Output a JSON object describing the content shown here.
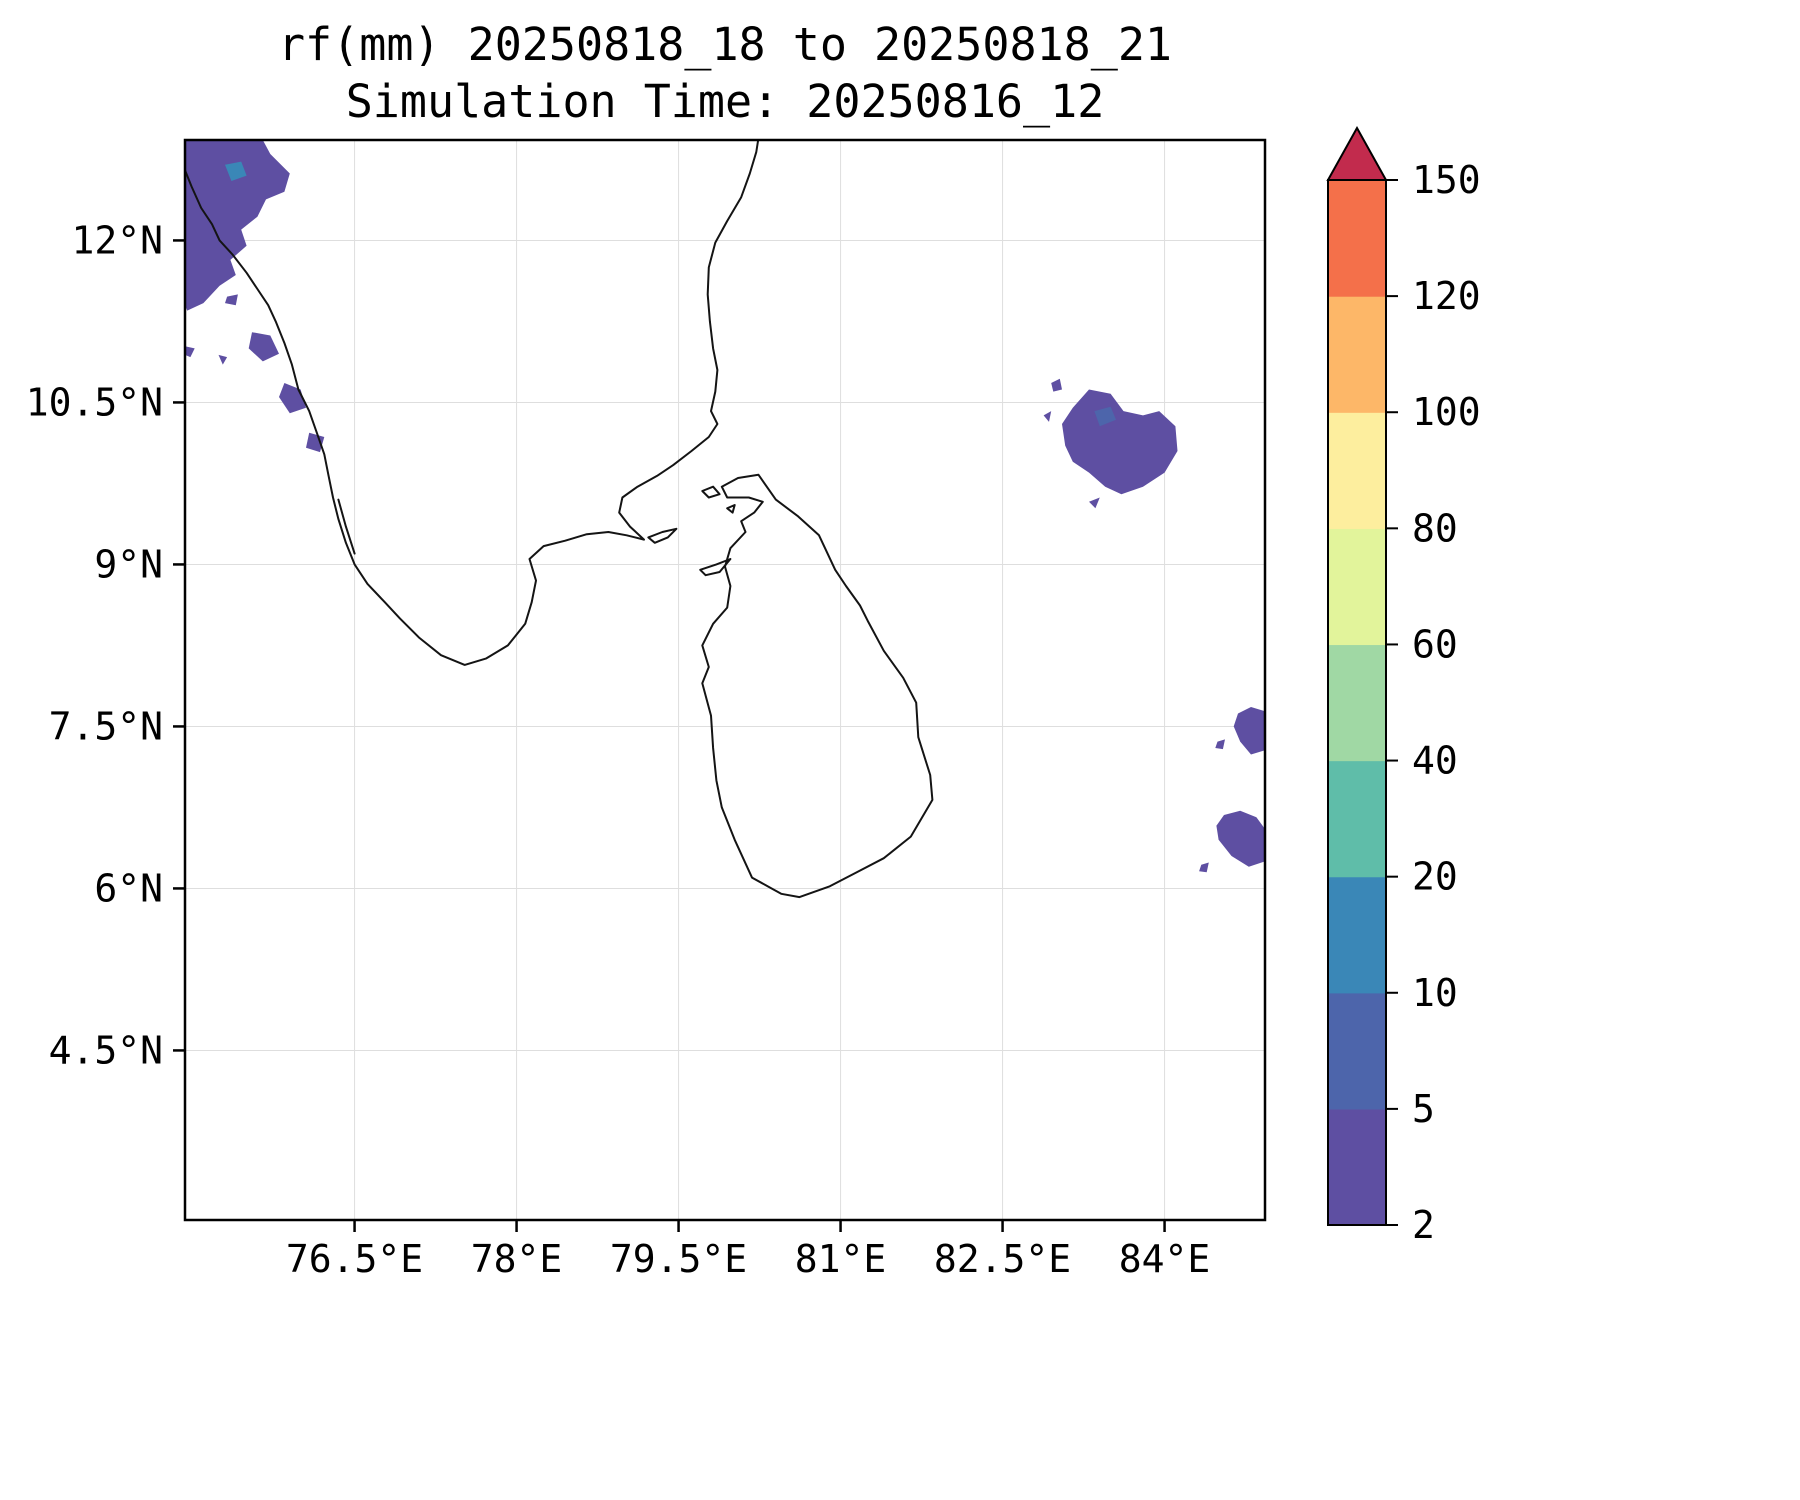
{
  "header": {
    "title": "rf(mm) 20250818_18 to 20250818_21",
    "subtitle": "Simulation Time: 20250816_12"
  },
  "chart_data": {
    "type": "heatmap",
    "subtype": "filled-contour-rainfall-map",
    "title": "rf(mm) 20250818_18 to 20250818_21",
    "subtitle": "Simulation Time: 20250816_12",
    "variable": "rf",
    "units": "mm",
    "valid_period": {
      "start": "20250818_18",
      "end": "20250818_21"
    },
    "simulation_time": "20250816_12",
    "grid": true,
    "grid_color": "#dedede",
    "coastline_color": "#141414",
    "extent": {
      "lon": [
        74.93,
        84.93
      ],
      "lat": [
        2.93,
        12.93
      ]
    },
    "x_axis": {
      "tick_values": [
        76.5,
        78,
        79.5,
        81,
        82.5,
        84
      ],
      "tick_labels": [
        "76.5°E",
        "78°E",
        "79.5°E",
        "81°E",
        "82.5°E",
        "84°E"
      ]
    },
    "y_axis": {
      "tick_values": [
        12,
        10.5,
        9,
        7.5,
        6,
        4.5
      ],
      "tick_labels": [
        "12°N",
        "10.5°N",
        "9°N",
        "7.5°N",
        "6°N",
        "4.5°N"
      ]
    },
    "colorbar": {
      "position": "right",
      "extend": "max",
      "levels": [
        2,
        5,
        10,
        20,
        40,
        60,
        80,
        100,
        120,
        150
      ],
      "tick_labels": [
        "2",
        "5",
        "10",
        "20",
        "40",
        "60",
        "80",
        "100",
        "120",
        "150"
      ],
      "interval_colors": [
        "#5e4fa2",
        "#4d65ab",
        "#3a87b7",
        "#5fbda9",
        "#a0d8a4",
        "#e2f49b",
        "#fdee9e",
        "#fdb768",
        "#f4704a"
      ],
      "over_color": "#c22b4d"
    },
    "coastlines": [
      {
        "name": "india-mainland",
        "closed": false,
        "points": [
          [
            74.93,
            12.65
          ],
          [
            74.99,
            12.5
          ],
          [
            75.08,
            12.3
          ],
          [
            75.18,
            12.15
          ],
          [
            75.25,
            12.0
          ],
          [
            75.37,
            11.87
          ],
          [
            75.5,
            11.7
          ],
          [
            75.6,
            11.55
          ],
          [
            75.7,
            11.4
          ],
          [
            75.77,
            11.25
          ],
          [
            75.85,
            11.05
          ],
          [
            75.92,
            10.85
          ],
          [
            75.98,
            10.62
          ],
          [
            76.08,
            10.42
          ],
          [
            76.15,
            10.22
          ],
          [
            76.22,
            10.02
          ],
          [
            76.26,
            9.82
          ],
          [
            76.3,
            9.62
          ],
          [
            76.35,
            9.42
          ],
          [
            76.42,
            9.2
          ],
          [
            76.5,
            9.0
          ],
          [
            76.62,
            8.82
          ],
          [
            76.78,
            8.65
          ],
          [
            76.92,
            8.5
          ],
          [
            77.1,
            8.32
          ],
          [
            77.3,
            8.16
          ],
          [
            77.52,
            8.07
          ],
          [
            77.72,
            8.13
          ],
          [
            77.92,
            8.25
          ],
          [
            78.08,
            8.45
          ],
          [
            78.14,
            8.65
          ],
          [
            78.18,
            8.85
          ],
          [
            78.12,
            9.05
          ],
          [
            78.25,
            9.17
          ],
          [
            78.45,
            9.22
          ],
          [
            78.65,
            9.28
          ],
          [
            78.85,
            9.3
          ],
          [
            79.02,
            9.27
          ],
          [
            79.18,
            9.23
          ],
          [
            79.05,
            9.35
          ],
          [
            78.95,
            9.48
          ],
          [
            78.98,
            9.62
          ],
          [
            79.12,
            9.72
          ],
          [
            79.3,
            9.82
          ],
          [
            79.45,
            9.92
          ],
          [
            79.62,
            10.05
          ],
          [
            79.78,
            10.18
          ],
          [
            79.86,
            10.3
          ],
          [
            79.8,
            10.42
          ],
          [
            79.84,
            10.6
          ],
          [
            79.86,
            10.8
          ],
          [
            79.82,
            11.0
          ],
          [
            79.79,
            11.25
          ],
          [
            79.77,
            11.5
          ],
          [
            79.78,
            11.75
          ],
          [
            79.84,
            11.98
          ],
          [
            79.95,
            12.18
          ],
          [
            80.08,
            12.4
          ],
          [
            80.16,
            12.62
          ],
          [
            80.22,
            12.82
          ],
          [
            80.24,
            12.95
          ]
        ]
      },
      {
        "name": "sri-lanka",
        "closed": true,
        "points": [
          [
            80.24,
            9.83
          ],
          [
            80.05,
            9.8
          ],
          [
            79.9,
            9.72
          ],
          [
            79.95,
            9.62
          ],
          [
            80.15,
            9.62
          ],
          [
            80.28,
            9.58
          ],
          [
            80.2,
            9.48
          ],
          [
            80.08,
            9.4
          ],
          [
            80.12,
            9.3
          ],
          [
            79.98,
            9.15
          ],
          [
            79.93,
            8.98
          ],
          [
            79.98,
            8.8
          ],
          [
            79.95,
            8.6
          ],
          [
            79.82,
            8.45
          ],
          [
            79.72,
            8.25
          ],
          [
            79.78,
            8.05
          ],
          [
            79.72,
            7.9
          ],
          [
            79.8,
            7.6
          ],
          [
            79.82,
            7.3
          ],
          [
            79.85,
            7.0
          ],
          [
            79.9,
            6.75
          ],
          [
            80.02,
            6.45
          ],
          [
            80.18,
            6.1
          ],
          [
            80.45,
            5.95
          ],
          [
            80.62,
            5.92
          ],
          [
            80.9,
            6.02
          ],
          [
            81.15,
            6.15
          ],
          [
            81.4,
            6.28
          ],
          [
            81.65,
            6.48
          ],
          [
            81.85,
            6.82
          ],
          [
            81.83,
            7.05
          ],
          [
            81.72,
            7.4
          ],
          [
            81.7,
            7.72
          ],
          [
            81.58,
            7.95
          ],
          [
            81.4,
            8.2
          ],
          [
            81.25,
            8.48
          ],
          [
            81.18,
            8.62
          ],
          [
            81.05,
            8.8
          ],
          [
            80.95,
            8.95
          ],
          [
            80.8,
            9.27
          ],
          [
            80.6,
            9.45
          ],
          [
            80.4,
            9.6
          ]
        ]
      },
      {
        "name": "rameswaram-island",
        "closed": true,
        "points": [
          [
            79.22,
            9.25
          ],
          [
            79.35,
            9.3
          ],
          [
            79.48,
            9.33
          ],
          [
            79.4,
            9.25
          ],
          [
            79.28,
            9.2
          ]
        ]
      },
      {
        "name": "mannar-island",
        "closed": true,
        "points": [
          [
            79.7,
            8.95
          ],
          [
            79.85,
            9.0
          ],
          [
            79.98,
            9.05
          ],
          [
            79.88,
            8.93
          ],
          [
            79.75,
            8.9
          ]
        ]
      },
      {
        "name": "jaffna-islets",
        "closed": true,
        "points": [
          [
            79.72,
            9.68
          ],
          [
            79.82,
            9.72
          ],
          [
            79.88,
            9.65
          ],
          [
            79.78,
            9.62
          ]
        ]
      },
      {
        "name": "jaffna-islet-small",
        "closed": true,
        "points": [
          [
            79.95,
            9.52
          ],
          [
            80.02,
            9.55
          ],
          [
            80.0,
            9.48
          ]
        ]
      },
      {
        "name": "kerala-backwaters",
        "closed": false,
        "points": [
          [
            76.35,
            9.6
          ],
          [
            76.42,
            9.35
          ],
          [
            76.5,
            9.1
          ]
        ]
      }
    ],
    "rain_patches": [
      {
        "name": "india-west-coast-blob",
        "level": "2-5",
        "level_index": 0,
        "points": [
          [
            74.93,
            12.93
          ],
          [
            75.65,
            12.93
          ],
          [
            75.72,
            12.8
          ],
          [
            75.9,
            12.62
          ],
          [
            75.85,
            12.45
          ],
          [
            75.68,
            12.38
          ],
          [
            75.6,
            12.22
          ],
          [
            75.45,
            12.1
          ],
          [
            75.5,
            11.95
          ],
          [
            75.35,
            11.82
          ],
          [
            75.4,
            11.68
          ],
          [
            75.25,
            11.58
          ],
          [
            75.1,
            11.42
          ],
          [
            74.95,
            11.35
          ],
          [
            74.93,
            11.4
          ]
        ]
      },
      {
        "name": "india-west-coast-inner-spot",
        "level": "10-20",
        "level_index": 2,
        "points": [
          [
            75.3,
            12.7
          ],
          [
            75.45,
            12.73
          ],
          [
            75.5,
            12.6
          ],
          [
            75.36,
            12.55
          ]
        ]
      },
      {
        "name": "kerala-fragment-1",
        "level": "2-5",
        "level_index": 0,
        "points": [
          [
            75.55,
            11.15
          ],
          [
            75.72,
            11.12
          ],
          [
            75.8,
            10.95
          ],
          [
            75.65,
            10.88
          ],
          [
            75.52,
            11.0
          ]
        ]
      },
      {
        "name": "kerala-fragment-2",
        "level": "2-5",
        "level_index": 0,
        "points": [
          [
            75.85,
            10.68
          ],
          [
            76.0,
            10.62
          ],
          [
            76.05,
            10.45
          ],
          [
            75.9,
            10.4
          ],
          [
            75.8,
            10.55
          ]
        ]
      },
      {
        "name": "kerala-fragment-3",
        "level": "2-5",
        "level_index": 0,
        "points": [
          [
            76.08,
            10.22
          ],
          [
            76.22,
            10.18
          ],
          [
            76.18,
            10.04
          ],
          [
            76.05,
            10.08
          ]
        ]
      },
      {
        "name": "kerala-speck-1",
        "level": "2-5",
        "level_index": 0,
        "points": [
          [
            75.32,
            11.48
          ],
          [
            75.42,
            11.5
          ],
          [
            75.4,
            11.4
          ],
          [
            75.3,
            11.42
          ]
        ]
      },
      {
        "name": "kerala-speck-2",
        "level": "2-5",
        "level_index": 0,
        "points": [
          [
            74.93,
            11.02
          ],
          [
            75.02,
            11.0
          ],
          [
            74.98,
            10.92
          ],
          [
            74.93,
            10.94
          ]
        ]
      },
      {
        "name": "kerala-speck-3",
        "level": "2-5",
        "level_index": 0,
        "points": [
          [
            75.24,
            10.94
          ],
          [
            75.32,
            10.92
          ],
          [
            75.28,
            10.85
          ]
        ]
      },
      {
        "name": "bay-of-bengal-blob",
        "level": "2-5",
        "level_index": 0,
        "points": [
          [
            83.05,
            10.3
          ],
          [
            83.15,
            10.45
          ],
          [
            83.3,
            10.62
          ],
          [
            83.5,
            10.58
          ],
          [
            83.62,
            10.42
          ],
          [
            83.8,
            10.38
          ],
          [
            83.95,
            10.42
          ],
          [
            84.1,
            10.28
          ],
          [
            84.12,
            10.05
          ],
          [
            84.0,
            9.85
          ],
          [
            83.8,
            9.72
          ],
          [
            83.6,
            9.65
          ],
          [
            83.45,
            9.72
          ],
          [
            83.3,
            9.85
          ],
          [
            83.15,
            9.95
          ],
          [
            83.08,
            10.1
          ]
        ]
      },
      {
        "name": "bay-of-bengal-inner-spot",
        "level": "5-10",
        "level_index": 1,
        "points": [
          [
            83.35,
            10.42
          ],
          [
            83.5,
            10.46
          ],
          [
            83.55,
            10.34
          ],
          [
            83.4,
            10.28
          ]
        ]
      },
      {
        "name": "bay-of-bengal-speck-1",
        "level": "2-5",
        "level_index": 0,
        "points": [
          [
            82.95,
            10.68
          ],
          [
            83.03,
            10.72
          ],
          [
            83.05,
            10.62
          ],
          [
            82.97,
            10.6
          ]
        ]
      },
      {
        "name": "bay-of-bengal-speck-2",
        "level": "2-5",
        "level_index": 0,
        "points": [
          [
            82.88,
            10.38
          ],
          [
            82.95,
            10.42
          ],
          [
            82.93,
            10.32
          ]
        ]
      },
      {
        "name": "bay-of-bengal-speck-3",
        "level": "2-5",
        "level_index": 0,
        "points": [
          [
            83.3,
            9.58
          ],
          [
            83.4,
            9.62
          ],
          [
            83.36,
            9.52
          ]
        ]
      },
      {
        "name": "east-edge-patch-north",
        "level": "2-5",
        "level_index": 0,
        "points": [
          [
            84.68,
            7.62
          ],
          [
            84.8,
            7.68
          ],
          [
            84.93,
            7.64
          ],
          [
            84.93,
            7.28
          ],
          [
            84.8,
            7.24
          ],
          [
            84.7,
            7.36
          ],
          [
            84.64,
            7.5
          ]
        ]
      },
      {
        "name": "east-edge-speck-north",
        "level": "2-5",
        "level_index": 0,
        "points": [
          [
            84.49,
            7.36
          ],
          [
            84.56,
            7.38
          ],
          [
            84.54,
            7.29
          ],
          [
            84.47,
            7.3
          ]
        ]
      },
      {
        "name": "east-edge-patch-south",
        "level": "2-5",
        "level_index": 0,
        "points": [
          [
            84.55,
            6.68
          ],
          [
            84.7,
            6.72
          ],
          [
            84.85,
            6.66
          ],
          [
            84.93,
            6.55
          ],
          [
            84.93,
            6.25
          ],
          [
            84.78,
            6.2
          ],
          [
            84.62,
            6.3
          ],
          [
            84.5,
            6.45
          ],
          [
            84.48,
            6.58
          ]
        ]
      },
      {
        "name": "east-edge-speck-south",
        "level": "2-5",
        "level_index": 0,
        "points": [
          [
            84.34,
            6.22
          ],
          [
            84.41,
            6.24
          ],
          [
            84.39,
            6.15
          ],
          [
            84.32,
            6.16
          ]
        ]
      }
    ]
  }
}
